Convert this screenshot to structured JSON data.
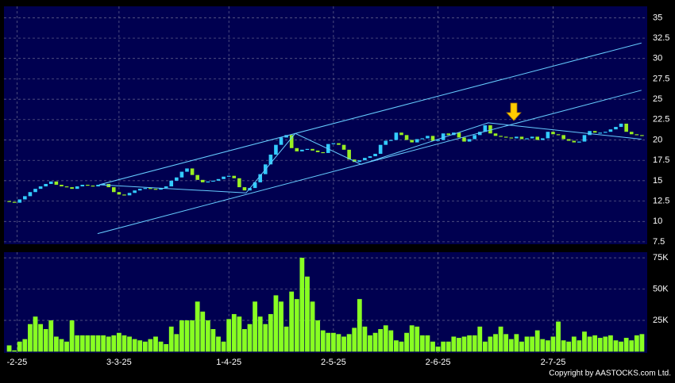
{
  "chart_data": [
    {
      "type": "candlestick",
      "up_color": "#33ccff",
      "down_color": "#99ee22",
      "line_color": "#66ccff",
      "xlim": [
        -1,
        122
      ],
      "xticks": [
        {
          "value": 1.5,
          "label": "-2-25"
        },
        {
          "value": 21,
          "label": "3-3-25"
        },
        {
          "value": 42,
          "label": "1-4-25"
        },
        {
          "value": 62,
          "label": "2-5-25"
        },
        {
          "value": 82,
          "label": "2-6-25"
        },
        {
          "value": 104,
          "label": "2-7-25"
        }
      ],
      "ylim": [
        7.2,
        36.4
      ],
      "yticks": [
        7.5,
        10,
        12.5,
        15,
        17.5,
        20,
        22.5,
        25,
        27.5,
        30,
        32.5,
        35
      ],
      "grid": true,
      "open": [
        12.5,
        12.4,
        12.3,
        12.7,
        13.1,
        13.6,
        14.0,
        14.3,
        14.6,
        14.9,
        14.5,
        14.3,
        14.2,
        14.0,
        14.3,
        14.5,
        14.4,
        14.3,
        14.5,
        14.6,
        14.2,
        13.6,
        13.3,
        13.2,
        13.5,
        13.8,
        14.0,
        14.1,
        14.0,
        13.9,
        14.1,
        14.3,
        15.0,
        15.4,
        16.1,
        16.5,
        15.7,
        15.1,
        14.8,
        14.9,
        15.0,
        15.2,
        15.5,
        15.6,
        15.3,
        14.2,
        13.8,
        14.1,
        14.8,
        15.8,
        17.0,
        18.2,
        19.4,
        20.3,
        20.6,
        19.0,
        18.6,
        18.8,
        18.9,
        18.7,
        18.5,
        18.4,
        19.5,
        19.6,
        19.4,
        18.8,
        17.6,
        17.3,
        17.5,
        17.8,
        18.0,
        18.3,
        19.4,
        19.9,
        20.0,
        20.9,
        20.6,
        20.0,
        19.7,
        20.1,
        20.2,
        20.5,
        19.9,
        20.0,
        20.8,
        20.6,
        20.9,
        20.3,
        19.8,
        20.1,
        20.6,
        21.0,
        21.8,
        20.8,
        20.5,
        20.4,
        20.3,
        20.2,
        20.4,
        20.1,
        20.2,
        20.4,
        20.0,
        20.2,
        21.0,
        20.7,
        20.6,
        20.1,
        19.9,
        19.7,
        19.8,
        20.6,
        21.1,
        20.9,
        20.9,
        21.0,
        21.3,
        21.6,
        22.0,
        21.0,
        20.7,
        20.6
      ],
      "close": [
        12.4,
        12.3,
        12.7,
        13.1,
        13.6,
        14.0,
        14.3,
        14.6,
        14.9,
        14.5,
        14.3,
        14.2,
        14.0,
        14.3,
        14.5,
        14.4,
        14.3,
        14.5,
        14.6,
        14.2,
        13.6,
        13.3,
        13.2,
        13.5,
        13.8,
        14.0,
        14.1,
        14.0,
        13.9,
        14.1,
        14.3,
        15.0,
        15.4,
        16.1,
        16.5,
        15.7,
        15.1,
        14.8,
        14.9,
        15.0,
        15.2,
        15.5,
        15.6,
        15.3,
        14.2,
        13.8,
        14.1,
        14.8,
        15.8,
        17.0,
        18.2,
        19.4,
        20.3,
        20.6,
        19.0,
        18.6,
        18.8,
        18.9,
        18.7,
        18.5,
        18.4,
        19.5,
        19.6,
        19.4,
        18.8,
        17.6,
        17.3,
        17.5,
        17.8,
        18.0,
        18.3,
        19.4,
        19.9,
        20.0,
        20.9,
        20.6,
        20.0,
        19.7,
        20.1,
        20.2,
        20.5,
        19.9,
        20.0,
        20.8,
        20.6,
        20.9,
        20.3,
        19.8,
        20.1,
        20.6,
        21.0,
        21.8,
        20.8,
        20.5,
        20.4,
        20.3,
        20.2,
        20.4,
        20.1,
        20.2,
        20.4,
        20.0,
        20.2,
        21.0,
        20.7,
        20.6,
        20.1,
        19.9,
        19.7,
        19.8,
        20.6,
        21.1,
        20.9,
        20.9,
        21.0,
        21.3,
        21.6,
        22.0,
        21.0,
        20.7,
        20.6,
        20.5
      ],
      "trendlines": [
        {
          "x": [
            17.2,
            120.9
          ],
          "y": [
            14.5,
            31.9
          ]
        },
        {
          "x": [
            16.9,
            120.9
          ],
          "y": [
            8.5,
            26.1
          ]
        },
        {
          "x": [
            17.2,
            45.3,
            54.7,
            67.3,
            91.6,
            120.9
          ],
          "y": [
            14.5,
            13.5,
            20.8,
            17.0,
            22.1,
            20.1
          ]
        }
      ]
    },
    {
      "type": "bar",
      "color": "#88ff22",
      "ylim": [
        -1000,
        79500
      ],
      "yticks": [
        {
          "value": 25000,
          "label": "25K"
        },
        {
          "value": 50000,
          "label": "50K"
        },
        {
          "value": 75000,
          "label": "75K"
        }
      ],
      "values": [
        5000,
        1000,
        8000,
        10000,
        22000,
        28000,
        22000,
        18000,
        25000,
        12000,
        10000,
        8000,
        25000,
        13000,
        13000,
        13000,
        13000,
        13000,
        13000,
        12000,
        13000,
        15000,
        13000,
        12000,
        10000,
        9000,
        8000,
        10000,
        12000,
        8000,
        6000,
        20000,
        14000,
        25000,
        25000,
        25000,
        40000,
        32000,
        25000,
        18000,
        12000,
        8000,
        26000,
        30000,
        28000,
        18000,
        22000,
        40000,
        28000,
        22000,
        30000,
        45000,
        40000,
        20000,
        48000,
        42000,
        75000,
        60000,
        40000,
        25000,
        17000,
        15000,
        15000,
        14000,
        12000,
        14000,
        19000,
        42000,
        20000,
        13000,
        15000,
        18000,
        21000,
        17000,
        9000,
        8000,
        15000,
        21000,
        20000,
        13000,
        13000,
        8000,
        4000,
        8000,
        8000,
        12000,
        11000,
        12000,
        13000,
        13000,
        20000,
        8000,
        12000,
        14000,
        20000,
        14000,
        10000,
        14000,
        8000,
        12000,
        12000,
        17000,
        10000,
        9000,
        12000,
        24000,
        9000,
        8000,
        12000,
        9000,
        16000,
        12000,
        13000,
        11000,
        12000,
        13000,
        9000,
        8000,
        11000,
        9000,
        13000,
        14000
      ]
    }
  ],
  "footer": "Copyright by AASTOCKS.com Ltd."
}
